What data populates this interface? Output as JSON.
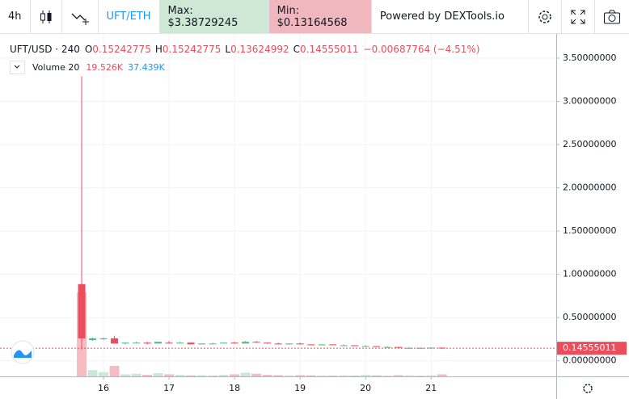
{
  "toolbar": {
    "interval": "4h",
    "pair": "UFT/ETH",
    "max": "Max: $3.38729245",
    "min": "Min: $0.13164568",
    "powered": "Powered by DEXTools.io"
  },
  "chart_data": {
    "type": "candlestick",
    "title": "UFT/USD · 240",
    "legend": {
      "o_label": "O",
      "o": "0.15242775",
      "h_label": "H",
      "h": "0.15242775",
      "l_label": "L",
      "l": "0.13624992",
      "c_label": "C",
      "c": "0.14555011",
      "change": "−0.00687764 (−4.51%)"
    },
    "volume_label": "Volume 20",
    "volume_value": "19.526K",
    "volume_ma": "37.439K",
    "up_color": "#53b987",
    "down_color": "#eb4d5c",
    "volume_up_color": "#c8e9d6",
    "volume_down_color": "#f6bcc1",
    "x": [
      15.667,
      15.833,
      16,
      16.167,
      16.333,
      16.5,
      16.667,
      16.833,
      17,
      17.167,
      17.333,
      17.5,
      17.667,
      17.833,
      18,
      18.167,
      18.333,
      18.5,
      18.667,
      18.833,
      19,
      19.167,
      19.333,
      19.5,
      19.667,
      19.833,
      20,
      20.167,
      20.333,
      20.5,
      20.667,
      20.833,
      21,
      21.167
    ],
    "open": [
      0.887,
      0.24,
      0.25,
      0.26,
      0.2,
      0.21,
      0.21,
      0.2,
      0.21,
      0.2,
      0.21,
      0.19,
      0.2,
      0.2,
      0.21,
      0.2,
      0.22,
      0.21,
      0.2,
      0.19,
      0.2,
      0.19,
      0.18,
      0.19,
      0.18,
      0.18,
      0.17,
      0.17,
      0.16,
      0.16,
      0.15,
      0.15,
      0.15,
      0.15242775
    ],
    "high": [
      3.29,
      0.27,
      0.27,
      0.29,
      0.21,
      0.22,
      0.22,
      0.22,
      0.23,
      0.22,
      0.21,
      0.2,
      0.21,
      0.21,
      0.22,
      0.23,
      0.23,
      0.21,
      0.21,
      0.2,
      0.21,
      0.19,
      0.19,
      0.19,
      0.19,
      0.18,
      0.18,
      0.17,
      0.17,
      0.16,
      0.16,
      0.155,
      0.155,
      0.15242775
    ],
    "low": [
      0.13,
      0.23,
      0.24,
      0.2,
      0.19,
      0.2,
      0.19,
      0.2,
      0.2,
      0.2,
      0.19,
      0.19,
      0.19,
      0.2,
      0.2,
      0.2,
      0.21,
      0.2,
      0.19,
      0.19,
      0.19,
      0.18,
      0.18,
      0.18,
      0.17,
      0.17,
      0.17,
      0.16,
      0.16,
      0.15,
      0.15,
      0.145,
      0.145,
      0.13624992
    ],
    "close": [
      0.26,
      0.26,
      0.26,
      0.2,
      0.21,
      0.21,
      0.2,
      0.22,
      0.2,
      0.21,
      0.19,
      0.2,
      0.2,
      0.21,
      0.2,
      0.22,
      0.21,
      0.2,
      0.19,
      0.2,
      0.19,
      0.18,
      0.19,
      0.18,
      0.18,
      0.17,
      0.17,
      0.16,
      0.16,
      0.15,
      0.15,
      0.15,
      0.152,
      0.14555011
    ],
    "volume": [
      800000,
      60000,
      40000,
      100000,
      20000,
      25000,
      15000,
      30000,
      20000,
      15000,
      10000,
      12000,
      10000,
      15000,
      20000,
      35000,
      25000,
      15000,
      12000,
      10000,
      12000,
      10000,
      8000,
      8000,
      10000,
      8000,
      15000,
      10000,
      8000,
      12000,
      10000,
      8000,
      10000,
      19526
    ],
    "volume_lim": [
      0,
      1000000
    ],
    "xlim": [
      14.42,
      22.91
    ],
    "xticks": [
      16,
      17,
      18,
      19,
      20,
      21
    ],
    "ylim": [
      -0.18,
      3.78
    ],
    "yticks": [
      {
        "value": 0,
        "label": "0.00000000"
      },
      {
        "value": 0.5,
        "label": "0.50000000"
      },
      {
        "value": 1,
        "label": "1.00000000"
      },
      {
        "value": 1.5,
        "label": "1.50000000"
      },
      {
        "value": 2,
        "label": "2.00000000"
      },
      {
        "value": 2.5,
        "label": "2.50000000"
      },
      {
        "value": 3,
        "label": "3.00000000"
      },
      {
        "value": 3.5,
        "label": "3.50000000"
      }
    ],
    "last_price": 0.14555011,
    "grid": true
  }
}
